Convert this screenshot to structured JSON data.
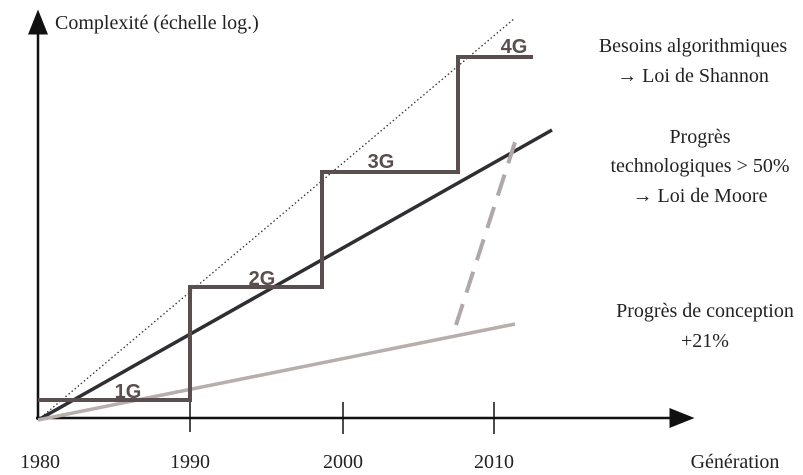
{
  "axes": {
    "y_label": "Complexité (échelle log.)",
    "x_label": "Génération",
    "x_ticks": [
      "1980",
      "1990",
      "2000",
      "2010"
    ]
  },
  "generations": [
    "1G",
    "2G",
    "3G",
    "4G"
  ],
  "annotations": {
    "shannon": [
      "Besoins algorithmiques",
      "→ Loi de Shannon"
    ],
    "moore": [
      "Progrès",
      "technologiques > 50%",
      "→ Loi de Moore"
    ],
    "conception": [
      "Progrès de conception",
      "+21%"
    ]
  }
}
